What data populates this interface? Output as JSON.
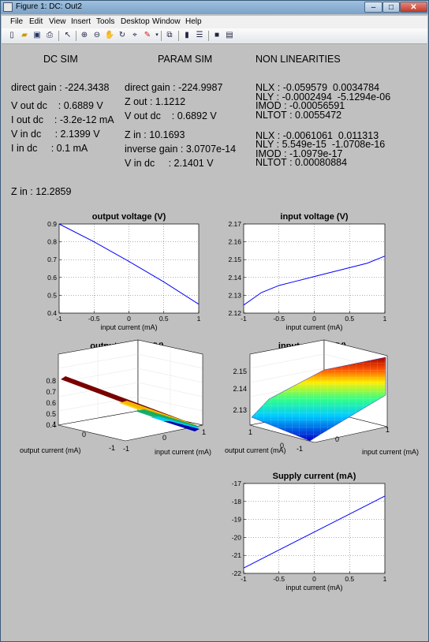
{
  "window": {
    "title": "Figure 1: DC: Out2",
    "minimize": "–",
    "maximize": "□",
    "close": "✕"
  },
  "menu": [
    "File",
    "Edit",
    "View",
    "Insert",
    "Tools",
    "Desktop",
    "Window",
    "Help"
  ],
  "toolbar_icons": [
    "new-figure-icon",
    "open-file-icon",
    "save-icon",
    "print-icon",
    "edit-plot-arrow-icon",
    "zoom-in-icon",
    "zoom-out-icon",
    "pan-hand-icon",
    "rotate-3d-icon",
    "data-cursor-icon",
    "brush-icon",
    "link-plot-icon",
    "insert-colorbar-icon",
    "insert-legend-icon",
    "hide-plot-tools-icon",
    "show-plot-tools-icon"
  ],
  "headers": {
    "dc": "DC SIM",
    "param": "PARAM SIM",
    "nonlin": "NON LINEARITIES"
  },
  "dc_sim": [
    "direct gain : -224.3438",
    "V out dc    : 0.6889 V",
    "I out dc    : -3.2e-12 mA",
    "V in dc     : 2.1399 V",
    "I in dc     : 0.1 mA"
  ],
  "param_sim": [
    "direct gain : -224.9987",
    "Z out : 1.1212",
    "V out dc    : 0.6892 V",
    "Z in : 10.1693",
    "inverse gain : 3.0707e-14",
    "V in dc     : 2.1401 V"
  ],
  "nonlin_1": [
    "NLX : -0.059579  0.0034784",
    "NLY : -0.0002494  -5.1294e-06",
    "IMOD : -0.00056591",
    "NLTOT : 0.0055472"
  ],
  "nonlin_2": [
    "NLX : -0.0061061  0.011313",
    "NLY : 5.549e-15  -1.0708e-16",
    "IMOD : -1.0979e-17",
    "NLTOT : 0.00080884"
  ],
  "z_in": "Z in : 12.2859",
  "chart_data": [
    {
      "type": "line",
      "title": "output voltage (V)",
      "xlabel": "input current (mA)",
      "ylabel": "",
      "xlim": [
        -1,
        1
      ],
      "ylim": [
        0.4,
        0.9
      ],
      "xticks": [
        "-1",
        "-0.5",
        "0",
        "0.5",
        "1"
      ],
      "yticks": [
        "0.4",
        "0.5",
        "0.6",
        "0.7",
        "0.8",
        "0.9"
      ],
      "grid": true,
      "series": [
        {
          "color": "#0000ff",
          "x": [
            -1,
            -0.5,
            0,
            0.5,
            1
          ],
          "y": [
            0.9,
            0.8,
            0.69,
            0.575,
            0.45
          ]
        }
      ]
    },
    {
      "type": "line",
      "title": "input voltage (V)",
      "xlabel": "input current (mA)",
      "ylabel": "",
      "xlim": [
        -1,
        1
      ],
      "ylim": [
        2.12,
        2.17
      ],
      "xticks": [
        "-1",
        "-0.5",
        "0",
        "0.5",
        "1"
      ],
      "yticks": [
        "2.12",
        "2.13",
        "2.14",
        "2.15",
        "2.16",
        "2.17"
      ],
      "grid": true,
      "series": [
        {
          "color": "#0000ff",
          "x": [
            -1,
            -0.75,
            -0.5,
            -0.25,
            0,
            0.25,
            0.5,
            0.75,
            1
          ],
          "y": [
            2.1245,
            2.1315,
            2.1355,
            2.138,
            2.1405,
            2.143,
            2.1455,
            2.148,
            2.152
          ]
        }
      ]
    },
    {
      "type": "area",
      "title": "output voltage (V)",
      "xlabel": "input current (mA)",
      "ylabel": "output current (mA)",
      "zticks": [
        "0.4",
        "0.5",
        "0.6",
        "0.7",
        "0.8"
      ],
      "xticks": [
        "-1",
        "0",
        "1"
      ],
      "yticks": [
        "1",
        "0",
        "-1"
      ],
      "grid": true
    },
    {
      "type": "area",
      "title": "input voltage (V)",
      "xlabel": "input current (mA)",
      "ylabel": "output current (mA)",
      "zticks": [
        "2.13",
        "2.14",
        "2.15"
      ],
      "xticks": [
        "-1",
        "0",
        "1"
      ],
      "yticks": [
        "1",
        "0",
        "-1"
      ],
      "grid": true
    },
    {
      "type": "line",
      "title": "Supply current (mA)",
      "xlabel": "input current (mA)",
      "ylabel": "",
      "xlim": [
        -1,
        1
      ],
      "ylim": [
        -22,
        -17
      ],
      "xticks": [
        "-1",
        "-0.5",
        "0",
        "0.5",
        "1"
      ],
      "yticks": [
        "-22",
        "-21",
        "-20",
        "-19",
        "-18",
        "-17"
      ],
      "grid": true,
      "series": [
        {
          "color": "#0000ff",
          "x": [
            -1,
            -0.5,
            0,
            0.5,
            1
          ],
          "y": [
            -21.7,
            -20.7,
            -19.7,
            -18.7,
            -17.7
          ]
        }
      ]
    }
  ]
}
